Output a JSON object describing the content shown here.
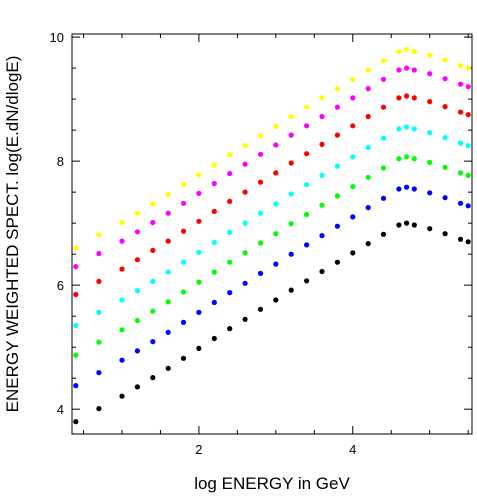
{
  "chart_data": {
    "type": "scatter",
    "title": "",
    "xlabel": "log ENERGY  in GeV",
    "ylabel": "ENERGY WEIGHTED SPECT. log(E.dN/dlogE)",
    "xlim": [
      0.35,
      5.55
    ],
    "ylim": [
      3.6,
      10.05
    ],
    "x_ticks": [
      2,
      4
    ],
    "y_ticks": [
      4,
      6,
      8,
      10
    ],
    "x_tick_labels": [
      "2",
      "4"
    ],
    "y_tick_labels": [
      "4",
      "6",
      "8",
      "10"
    ],
    "grid": false,
    "legend": "none",
    "x": [
      0.4,
      0.7,
      1.0,
      1.2,
      1.4,
      1.6,
      1.8,
      2.0,
      2.2,
      2.4,
      2.6,
      2.8,
      3.0,
      3.2,
      3.4,
      3.6,
      3.8,
      4.0,
      4.2,
      4.4,
      4.6,
      4.7,
      4.8,
      5.0,
      5.2,
      5.4,
      5.5
    ],
    "series": [
      {
        "color": "#000000",
        "values": [
          3.8,
          4.01,
          4.21,
          4.36,
          4.51,
          4.66,
          4.82,
          4.98,
          5.14,
          5.3,
          5.45,
          5.61,
          5.76,
          5.92,
          6.07,
          6.22,
          6.37,
          6.52,
          6.67,
          6.82,
          6.97,
          7.0,
          6.97,
          6.91,
          6.83,
          6.74,
          6.7
        ]
      },
      {
        "color": "#0000ff",
        "values": [
          4.38,
          4.59,
          4.79,
          4.94,
          5.09,
          5.24,
          5.4,
          5.56,
          5.72,
          5.88,
          6.03,
          6.19,
          6.34,
          6.5,
          6.65,
          6.8,
          6.95,
          7.1,
          7.25,
          7.4,
          7.55,
          7.58,
          7.55,
          7.49,
          7.41,
          7.32,
          7.28
        ]
      },
      {
        "color": "#00ff00",
        "values": [
          4.87,
          5.08,
          5.28,
          5.43,
          5.58,
          5.73,
          5.89,
          6.05,
          6.21,
          6.37,
          6.52,
          6.68,
          6.83,
          6.99,
          7.14,
          7.29,
          7.44,
          7.59,
          7.74,
          7.89,
          8.04,
          8.07,
          8.04,
          7.98,
          7.9,
          7.81,
          7.77
        ]
      },
      {
        "color": "#00ffff",
        "values": [
          5.35,
          5.56,
          5.76,
          5.91,
          6.06,
          6.21,
          6.37,
          6.53,
          6.69,
          6.85,
          7.0,
          7.16,
          7.31,
          7.47,
          7.62,
          7.77,
          7.92,
          8.07,
          8.22,
          8.37,
          8.52,
          8.55,
          8.52,
          8.46,
          8.38,
          8.29,
          8.25
        ]
      },
      {
        "color": "#ff0000",
        "values": [
          5.85,
          6.06,
          6.26,
          6.41,
          6.56,
          6.71,
          6.87,
          7.03,
          7.19,
          7.35,
          7.5,
          7.66,
          7.81,
          7.97,
          8.12,
          8.27,
          8.42,
          8.57,
          8.72,
          8.87,
          9.02,
          9.05,
          9.02,
          8.96,
          8.88,
          8.79,
          8.75
        ]
      },
      {
        "color": "#ff00ff",
        "values": [
          6.3,
          6.51,
          6.71,
          6.86,
          7.01,
          7.16,
          7.32,
          7.48,
          7.64,
          7.8,
          7.95,
          8.11,
          8.26,
          8.42,
          8.57,
          8.72,
          8.87,
          9.02,
          9.17,
          9.32,
          9.47,
          9.5,
          9.47,
          9.41,
          9.33,
          9.24,
          9.2
        ]
      },
      {
        "color": "#ffff00",
        "values": [
          6.6,
          6.81,
          7.01,
          7.16,
          7.31,
          7.46,
          7.62,
          7.78,
          7.94,
          8.1,
          8.25,
          8.41,
          8.56,
          8.72,
          8.87,
          9.02,
          9.17,
          9.32,
          9.47,
          9.62,
          9.77,
          9.8,
          9.77,
          9.71,
          9.63,
          9.54,
          9.5
        ]
      }
    ]
  }
}
